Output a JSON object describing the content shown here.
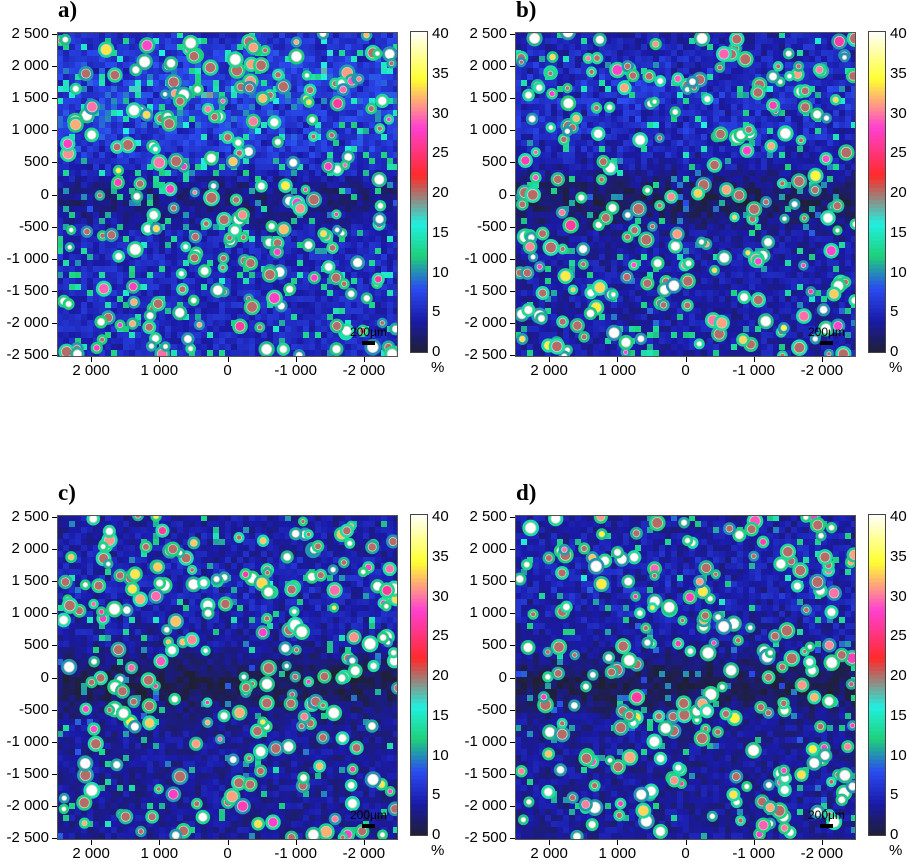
{
  "chart_data": [
    {
      "type": "heatmap",
      "panel_label": "a)",
      "x_ticks": [
        "2 000",
        "1 000",
        "0",
        "-1 000",
        "-2 000"
      ],
      "y_ticks": [
        "2 500",
        "2 000",
        "1 500",
        "1 000",
        "500",
        "0",
        "-500",
        "-1 000",
        "-1 500",
        "-2 000",
        "-2 500"
      ],
      "xlim": [
        2500,
        -2500
      ],
      "ylim": [
        -2500,
        2500
      ],
      "colorbar": {
        "ticks": [
          "40",
          "35",
          "30",
          "25",
          "20",
          "15",
          "10",
          "5",
          "0"
        ],
        "range": [
          0,
          40
        ],
        "unit": "%"
      },
      "scale_bar": "200μm",
      "background_level": 5,
      "green_density": 0.85,
      "seed": 11
    },
    {
      "type": "heatmap",
      "panel_label": "b)",
      "x_ticks": [
        "2 000",
        "1 000",
        "0",
        "-1 000",
        "-2 000"
      ],
      "y_ticks": [
        "2 500",
        "2 000",
        "1 500",
        "1 000",
        "500",
        "0",
        "-500",
        "-1 000",
        "-1 500",
        "-2 000",
        "-2 500"
      ],
      "xlim": [
        2500,
        -2500
      ],
      "ylim": [
        -2500,
        2500
      ],
      "colorbar": {
        "ticks": [
          "40",
          "35",
          "30",
          "25",
          "20",
          "15",
          "10",
          "5",
          "0"
        ],
        "range": [
          0,
          40
        ],
        "unit": "%"
      },
      "scale_bar": "200μm",
      "background_level": 4,
      "green_density": 0.55,
      "seed": 23
    },
    {
      "type": "heatmap",
      "panel_label": "c)",
      "x_ticks": [
        "2 000",
        "1 000",
        "0",
        "-1 000",
        "-2 000"
      ],
      "y_ticks": [
        "2 500",
        "2 000",
        "1 500",
        "1 000",
        "500",
        "0",
        "-500",
        "-1 000",
        "-1 500",
        "-2 000",
        "-2 500"
      ],
      "xlim": [
        2500,
        -2500
      ],
      "ylim": [
        -2500,
        2500
      ],
      "colorbar": {
        "ticks": [
          "40",
          "35",
          "30",
          "25",
          "20",
          "15",
          "10",
          "5",
          "0"
        ],
        "range": [
          0,
          40
        ],
        "unit": "%"
      },
      "scale_bar": "200μm",
      "background_level": 3.5,
      "green_density": 0.4,
      "seed": 37
    },
    {
      "type": "heatmap",
      "panel_label": "d)",
      "x_ticks": [
        "2 000",
        "1 000",
        "0",
        "-1 000",
        "-2 000"
      ],
      "y_ticks": [
        "2 500",
        "2 000",
        "1 500",
        "1 000",
        "500",
        "0",
        "-500",
        "-1 000",
        "-1 500",
        "-2 000",
        "-2 500"
      ],
      "xlim": [
        2500,
        -2500
      ],
      "ylim": [
        -2500,
        2500
      ],
      "colorbar": {
        "ticks": [
          "40",
          "35",
          "30",
          "25",
          "20",
          "15",
          "10",
          "5",
          "0"
        ],
        "range": [
          0,
          40
        ],
        "unit": "%"
      },
      "scale_bar": "200μm",
      "background_level": 3.5,
      "green_density": 0.4,
      "seed": 41
    }
  ],
  "colors": {
    "scale": [
      "#202034",
      "#1a1aa8",
      "#2a4cf0",
      "#1fd07a",
      "#20f0e0",
      "#ff2a2a",
      "#ff40d0",
      "#ffff30",
      "#ffffff"
    ],
    "marker_outline": "#cfcfcf"
  }
}
